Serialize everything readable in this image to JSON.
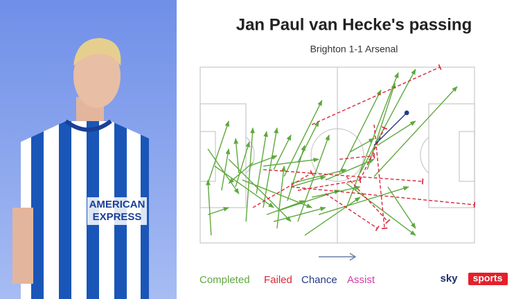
{
  "chart_data": {
    "type": "pass-map",
    "title": "Jan Paul van Hecke's passing",
    "subtitle": "Brighton 1-1 Arsenal",
    "xlim": [
      0,
      100
    ],
    "ylim": [
      0,
      100
    ],
    "series": [
      {
        "name": "Completed",
        "color": "#5fa83f",
        "passes": [
          {
            "x": [
              2.8,
              10.4
            ],
            "y": [
              66.1,
              30.7
            ]
          },
          {
            "x": [
              4.0,
              2.8
            ],
            "y": [
              95.7,
              64.2
            ]
          },
          {
            "x": [
              7.8,
              10.4
            ],
            "y": [
              70.1,
              46.5
            ]
          },
          {
            "x": [
              2.8,
              14.1
            ],
            "y": [
              46.5,
              72.0
            ]
          },
          {
            "x": [
              12.9,
              17.9
            ],
            "y": [
              68.1,
              42.5
            ]
          },
          {
            "x": [
              16.7,
              19.2
            ],
            "y": [
              87.8,
              34.6
            ]
          },
          {
            "x": [
              19.2,
              10.4
            ],
            "y": [
              54.3,
              66.1
            ]
          },
          {
            "x": [
              20.5,
              24.2
            ],
            "y": [
              72.0,
              36.6
            ]
          },
          {
            "x": [
              23.0,
              28.0
            ],
            "y": [
              79.9,
              34.6
            ]
          },
          {
            "x": [
              26.8,
              33.1
            ],
            "y": [
              58.3,
              38.6
            ]
          },
          {
            "x": [
              28.0,
              30.6
            ],
            "y": [
              91.7,
              56.3
            ]
          },
          {
            "x": [
              30.6,
              44.4
            ],
            "y": [
              62.2,
              18.9
            ]
          },
          {
            "x": [
              31.8,
              38.1
            ],
            "y": [
              76.0,
              44.5
            ]
          },
          {
            "x": [
              33.1,
              45.7
            ],
            "y": [
              68.1,
              62.2
            ]
          },
          {
            "x": [
              35.6,
              47.0
            ],
            "y": [
              87.8,
              38.6
            ]
          },
          {
            "x": [
              38.1,
              58.3
            ],
            "y": [
              95.7,
              74.0
            ]
          },
          {
            "x": [
              23.0,
              43.2
            ],
            "y": [
              56.3,
              52.4
            ]
          },
          {
            "x": [
              10.4,
              33.1
            ],
            "y": [
              52.4,
              87.8
            ]
          },
          {
            "x": [
              5.3,
              26.8
            ],
            "y": [
              56.3,
              79.9
            ]
          },
          {
            "x": [
              15.4,
              40.7
            ],
            "y": [
              64.2,
              79.9
            ]
          },
          {
            "x": [
              28.0,
              50.8
            ],
            "y": [
              81.9,
              70.1
            ]
          },
          {
            "x": [
              33.1,
              53.3
            ],
            "y": [
              66.1,
              58.3
            ]
          },
          {
            "x": [
              40.7,
              58.3
            ],
            "y": [
              74.0,
              68.1
            ]
          },
          {
            "x": [
              43.2,
              76.0
            ],
            "y": [
              83.9,
              68.1
            ]
          },
          {
            "x": [
              50.8,
              65.9
            ],
            "y": [
              60.2,
              13.0
            ]
          },
          {
            "x": [
              53.3,
              72.2
            ],
            "y": [
              79.9,
              3.1
            ]
          },
          {
            "x": [
              54.5,
              63.4
            ],
            "y": [
              48.4,
              40.6
            ]
          },
          {
            "x": [
              58.3,
              78.5
            ],
            "y": [
              60.2,
              1.2
            ]
          },
          {
            "x": [
              60.9,
              71.0
            ],
            "y": [
              58.3,
              9.1
            ]
          },
          {
            "x": [
              63.4,
              93.7
            ],
            "y": [
              62.2,
              11.0
            ]
          },
          {
            "x": [
              64.6,
              78.5
            ],
            "y": [
              44.5,
              30.7
            ]
          },
          {
            "x": [
              68.4,
              78.5
            ],
            "y": [
              68.1,
              91.7
            ]
          },
          {
            "x": [
              53.3,
              78.5
            ],
            "y": [
              66.1,
              95.7
            ]
          },
          {
            "x": [
              17.9,
              28.0
            ],
            "y": [
              56.3,
              50.4
            ]
          },
          {
            "x": [
              14.1,
              12.9
            ],
            "y": [
              60.2,
              40.6
            ]
          },
          {
            "x": [
              35.6,
              43.2
            ],
            "y": [
              54.3,
              30.7
            ]
          },
          {
            "x": [
              45.7,
              63.4
            ],
            "y": [
              64.2,
              52.4
            ]
          },
          {
            "x": [
              24.2,
              38.1
            ],
            "y": [
              83.9,
              76.0
            ]
          },
          {
            "x": [
              2.8,
              10.4
            ],
            "y": [
              83.9,
              79.9
            ]
          },
          {
            "x": [
              26.8,
              45.7
            ],
            "y": [
              87.8,
              79.9
            ]
          }
        ]
      },
      {
        "name": "Failed",
        "color": "#d8283a",
        "passes": [
          {
            "x": [
              40.7,
              87.4
            ],
            "y": [
              32.7,
              0
            ]
          },
          {
            "x": [
              19.2,
              40.7
            ],
            "y": [
              79.9,
              60.2
            ]
          },
          {
            "x": [
              23.0,
              81.1
            ],
            "y": [
              58.3,
              65.0
            ]
          },
          {
            "x": [
              33.1,
              100
            ],
            "y": [
              68.1,
              78.3
            ]
          },
          {
            "x": [
              45.7,
              64.6
            ],
            "y": [
              72.0,
              91.7
            ]
          },
          {
            "x": [
              63.4,
              67.2
            ],
            "y": [
              32.7,
              91.7
            ]
          },
          {
            "x": [
              53.3,
              68.4
            ],
            "y": [
              62.2,
              87.8
            ]
          },
          {
            "x": [
              58.3,
              67.2
            ],
            "y": [
              64.2,
              34.6
            ]
          },
          {
            "x": [
              35.6,
              58.3
            ],
            "y": [
              70.1,
              64.2
            ]
          },
          {
            "x": [
              50.8,
              63.4
            ],
            "y": [
              52.4,
              50.4
            ]
          }
        ]
      },
      {
        "name": "Chance",
        "color": "#233a86",
        "passes": [
          {
            "x": [
              63.4,
              75.3
            ],
            "y": [
              44.5,
              26.0
            ]
          }
        ]
      },
      {
        "name": "Assist",
        "color": "#d63fa6",
        "passes": []
      }
    ]
  },
  "logo": {
    "sky": "sky",
    "sports": "sports"
  }
}
